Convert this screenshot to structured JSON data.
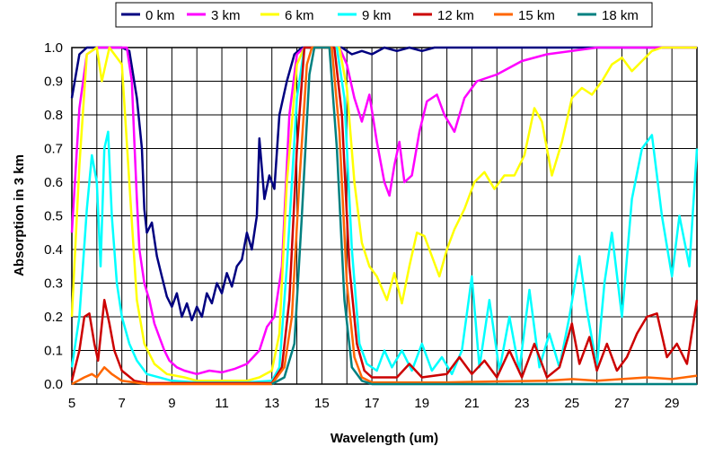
{
  "chart_data": {
    "type": "line",
    "xlabel": "Wavelength (um)",
    "ylabel": "Absorption in 3 km",
    "xlim": [
      5,
      30
    ],
    "ylim": [
      0,
      1.0
    ],
    "x_ticks": [
      "5",
      "7",
      "9",
      "11",
      "13",
      "15",
      "17",
      "19",
      "21",
      "23",
      "25",
      "27",
      "29"
    ],
    "y_ticks": [
      "0.0",
      "0.1",
      "0.2",
      "0.3",
      "0.4",
      "0.5",
      "0.6",
      "0.7",
      "0.8",
      "0.9",
      "1.0"
    ],
    "grid": true,
    "legend_position": "top",
    "series": [
      {
        "name": "0 km",
        "color": "#000080",
        "points": [
          [
            5,
            0.85
          ],
          [
            5.3,
            0.98
          ],
          [
            5.6,
            1
          ],
          [
            6,
            1
          ],
          [
            7,
            1
          ],
          [
            7.3,
            0.99
          ],
          [
            7.6,
            0.85
          ],
          [
            7.8,
            0.7
          ],
          [
            7.9,
            0.52
          ],
          [
            8.0,
            0.45
          ],
          [
            8.2,
            0.48
          ],
          [
            8.4,
            0.38
          ],
          [
            8.6,
            0.32
          ],
          [
            8.8,
            0.26
          ],
          [
            9.0,
            0.23
          ],
          [
            9.2,
            0.27
          ],
          [
            9.4,
            0.2
          ],
          [
            9.6,
            0.24
          ],
          [
            9.8,
            0.19
          ],
          [
            10.0,
            0.23
          ],
          [
            10.2,
            0.2
          ],
          [
            10.4,
            0.27
          ],
          [
            10.6,
            0.24
          ],
          [
            10.8,
            0.3
          ],
          [
            11.0,
            0.27
          ],
          [
            11.2,
            0.33
          ],
          [
            11.4,
            0.29
          ],
          [
            11.6,
            0.35
          ],
          [
            11.8,
            0.37
          ],
          [
            12.0,
            0.45
          ],
          [
            12.2,
            0.4
          ],
          [
            12.4,
            0.5
          ],
          [
            12.5,
            0.73
          ],
          [
            12.7,
            0.55
          ],
          [
            12.9,
            0.62
          ],
          [
            13.1,
            0.58
          ],
          [
            13.3,
            0.8
          ],
          [
            13.6,
            0.9
          ],
          [
            13.9,
            0.98
          ],
          [
            14.2,
            1
          ],
          [
            15.8,
            1
          ],
          [
            16.2,
            0.98
          ],
          [
            16.6,
            0.99
          ],
          [
            17.0,
            0.98
          ],
          [
            17.5,
            1
          ],
          [
            18.0,
            0.99
          ],
          [
            18.5,
            1
          ],
          [
            19.0,
            0.99
          ],
          [
            19.5,
            1
          ],
          [
            30,
            1
          ]
        ]
      },
      {
        "name": "3 km",
        "color": "#FF00FF",
        "points": [
          [
            5,
            0.45
          ],
          [
            5.3,
            0.82
          ],
          [
            5.6,
            0.98
          ],
          [
            6,
            1
          ],
          [
            7.2,
            1
          ],
          [
            7.4,
            0.9
          ],
          [
            7.5,
            0.72
          ],
          [
            7.6,
            0.55
          ],
          [
            7.7,
            0.4
          ],
          [
            7.9,
            0.3
          ],
          [
            8.1,
            0.25
          ],
          [
            8.3,
            0.18
          ],
          [
            8.5,
            0.14
          ],
          [
            8.7,
            0.1
          ],
          [
            8.9,
            0.07
          ],
          [
            9.2,
            0.05
          ],
          [
            9.5,
            0.04
          ],
          [
            10,
            0.03
          ],
          [
            10.5,
            0.04
          ],
          [
            11,
            0.035
          ],
          [
            11.5,
            0.045
          ],
          [
            12,
            0.06
          ],
          [
            12.5,
            0.1
          ],
          [
            12.8,
            0.17
          ],
          [
            13.1,
            0.2
          ],
          [
            13.4,
            0.35
          ],
          [
            13.7,
            0.8
          ],
          [
            14,
            0.98
          ],
          [
            14.3,
            1
          ],
          [
            15.7,
            1
          ],
          [
            16,
            0.95
          ],
          [
            16.3,
            0.85
          ],
          [
            16.6,
            0.78
          ],
          [
            16.9,
            0.86
          ],
          [
            17.2,
            0.72
          ],
          [
            17.5,
            0.6
          ],
          [
            17.7,
            0.56
          ],
          [
            17.9,
            0.65
          ],
          [
            18.1,
            0.72
          ],
          [
            18.3,
            0.6
          ],
          [
            18.6,
            0.62
          ],
          [
            18.9,
            0.75
          ],
          [
            19.2,
            0.84
          ],
          [
            19.6,
            0.86
          ],
          [
            19.9,
            0.8
          ],
          [
            20.3,
            0.75
          ],
          [
            20.7,
            0.85
          ],
          [
            21.2,
            0.9
          ],
          [
            22,
            0.92
          ],
          [
            23,
            0.96
          ],
          [
            24,
            0.98
          ],
          [
            25,
            0.99
          ],
          [
            26,
            1
          ],
          [
            30,
            1
          ]
        ]
      },
      {
        "name": "6 km",
        "color": "#FFFF00",
        "points": [
          [
            5,
            0.2
          ],
          [
            5.3,
            0.65
          ],
          [
            5.6,
            0.98
          ],
          [
            6,
            1
          ],
          [
            6.2,
            0.9
          ],
          [
            6.5,
            1
          ],
          [
            7,
            0.95
          ],
          [
            7.3,
            0.6
          ],
          [
            7.6,
            0.25
          ],
          [
            7.9,
            0.12
          ],
          [
            8.3,
            0.06
          ],
          [
            8.8,
            0.03
          ],
          [
            9.5,
            0.02
          ],
          [
            10,
            0.01
          ],
          [
            11,
            0.01
          ],
          [
            12,
            0.01
          ],
          [
            12.5,
            0.02
          ],
          [
            13,
            0.04
          ],
          [
            13.3,
            0.15
          ],
          [
            13.6,
            0.6
          ],
          [
            14,
            0.95
          ],
          [
            14.3,
            1
          ],
          [
            15.7,
            1
          ],
          [
            16,
            0.88
          ],
          [
            16.3,
            0.6
          ],
          [
            16.6,
            0.42
          ],
          [
            16.9,
            0.35
          ],
          [
            17.2,
            0.32
          ],
          [
            17.6,
            0.25
          ],
          [
            17.9,
            0.33
          ],
          [
            18.2,
            0.24
          ],
          [
            18.5,
            0.35
          ],
          [
            18.8,
            0.45
          ],
          [
            19.1,
            0.44
          ],
          [
            19.4,
            0.38
          ],
          [
            19.7,
            0.32
          ],
          [
            20,
            0.4
          ],
          [
            20.3,
            0.46
          ],
          [
            20.7,
            0.52
          ],
          [
            21.1,
            0.6
          ],
          [
            21.5,
            0.63
          ],
          [
            21.9,
            0.58
          ],
          [
            22.3,
            0.62
          ],
          [
            22.7,
            0.62
          ],
          [
            23.1,
            0.68
          ],
          [
            23.5,
            0.82
          ],
          [
            23.8,
            0.78
          ],
          [
            24.2,
            0.62
          ],
          [
            24.6,
            0.72
          ],
          [
            25,
            0.85
          ],
          [
            25.4,
            0.88
          ],
          [
            25.8,
            0.86
          ],
          [
            26.2,
            0.9
          ],
          [
            26.6,
            0.95
          ],
          [
            27,
            0.97
          ],
          [
            27.4,
            0.93
          ],
          [
            27.8,
            0.96
          ],
          [
            28.2,
            0.99
          ],
          [
            28.6,
            1
          ],
          [
            30,
            1
          ]
        ]
      },
      {
        "name": "9 km",
        "color": "#00FFFF",
        "points": [
          [
            5,
            0.05
          ],
          [
            5.3,
            0.2
          ],
          [
            5.6,
            0.52
          ],
          [
            5.8,
            0.68
          ],
          [
            6.0,
            0.6
          ],
          [
            6.15,
            0.35
          ],
          [
            6.3,
            0.7
          ],
          [
            6.45,
            0.75
          ],
          [
            6.6,
            0.5
          ],
          [
            6.8,
            0.3
          ],
          [
            7.0,
            0.2
          ],
          [
            7.3,
            0.12
          ],
          [
            7.6,
            0.07
          ],
          [
            8,
            0.03
          ],
          [
            9,
            0.01
          ],
          [
            10,
            0.005
          ],
          [
            12,
            0.005
          ],
          [
            13,
            0.01
          ],
          [
            13.3,
            0.05
          ],
          [
            13.6,
            0.35
          ],
          [
            14,
            0.85
          ],
          [
            14.3,
            1
          ],
          [
            15.6,
            1
          ],
          [
            15.9,
            0.85
          ],
          [
            16.2,
            0.4
          ],
          [
            16.5,
            0.12
          ],
          [
            16.8,
            0.06
          ],
          [
            17.2,
            0.04
          ],
          [
            17.5,
            0.1
          ],
          [
            17.8,
            0.05
          ],
          [
            18.2,
            0.1
          ],
          [
            18.6,
            0.04
          ],
          [
            19,
            0.12
          ],
          [
            19.4,
            0.04
          ],
          [
            19.8,
            0.08
          ],
          [
            20.2,
            0.03
          ],
          [
            20.6,
            0.1
          ],
          [
            21.0,
            0.32
          ],
          [
            21.3,
            0.05
          ],
          [
            21.7,
            0.25
          ],
          [
            22.1,
            0.04
          ],
          [
            22.5,
            0.2
          ],
          [
            22.9,
            0.04
          ],
          [
            23.3,
            0.28
          ],
          [
            23.7,
            0.05
          ],
          [
            24.1,
            0.15
          ],
          [
            24.5,
            0.05
          ],
          [
            24.9,
            0.2
          ],
          [
            25.3,
            0.38
          ],
          [
            25.6,
            0.22
          ],
          [
            26.0,
            0.05
          ],
          [
            26.3,
            0.3
          ],
          [
            26.6,
            0.45
          ],
          [
            27,
            0.2
          ],
          [
            27.4,
            0.55
          ],
          [
            27.8,
            0.7
          ],
          [
            28.2,
            0.74
          ],
          [
            28.6,
            0.5
          ],
          [
            29.0,
            0.32
          ],
          [
            29.3,
            0.5
          ],
          [
            29.7,
            0.35
          ],
          [
            30,
            0.7
          ]
        ]
      },
      {
        "name": "12 km",
        "color": "#CC0000",
        "points": [
          [
            5,
            0.01
          ],
          [
            5.3,
            0.1
          ],
          [
            5.5,
            0.2
          ],
          [
            5.7,
            0.21
          ],
          [
            5.9,
            0.12
          ],
          [
            6.05,
            0.07
          ],
          [
            6.3,
            0.25
          ],
          [
            6.5,
            0.18
          ],
          [
            6.7,
            0.1
          ],
          [
            7,
            0.04
          ],
          [
            7.5,
            0.01
          ],
          [
            8,
            0.003
          ],
          [
            13,
            0.003
          ],
          [
            13.4,
            0.05
          ],
          [
            13.7,
            0.25
          ],
          [
            14,
            0.7
          ],
          [
            14.3,
            1
          ],
          [
            15.5,
            1
          ],
          [
            15.8,
            0.8
          ],
          [
            16.1,
            0.35
          ],
          [
            16.4,
            0.12
          ],
          [
            16.7,
            0.04
          ],
          [
            17,
            0.02
          ],
          [
            18,
            0.02
          ],
          [
            18.5,
            0.06
          ],
          [
            19,
            0.02
          ],
          [
            20,
            0.03
          ],
          [
            20.5,
            0.08
          ],
          [
            21,
            0.03
          ],
          [
            21.5,
            0.07
          ],
          [
            22,
            0.02
          ],
          [
            22.5,
            0.1
          ],
          [
            23,
            0.02
          ],
          [
            23.5,
            0.12
          ],
          [
            24,
            0.02
          ],
          [
            24.5,
            0.05
          ],
          [
            25,
            0.18
          ],
          [
            25.3,
            0.06
          ],
          [
            25.7,
            0.14
          ],
          [
            26,
            0.04
          ],
          [
            26.4,
            0.12
          ],
          [
            26.8,
            0.04
          ],
          [
            27.2,
            0.08
          ],
          [
            27.6,
            0.15
          ],
          [
            28,
            0.2
          ],
          [
            28.4,
            0.21
          ],
          [
            28.8,
            0.08
          ],
          [
            29.2,
            0.12
          ],
          [
            29.6,
            0.06
          ],
          [
            30,
            0.25
          ]
        ]
      },
      {
        "name": "15 km",
        "color": "#FF6600",
        "points": [
          [
            5,
            0.0
          ],
          [
            5.5,
            0.02
          ],
          [
            5.8,
            0.03
          ],
          [
            6.0,
            0.02
          ],
          [
            6.3,
            0.05
          ],
          [
            6.6,
            0.03
          ],
          [
            7,
            0.01
          ],
          [
            8,
            0
          ],
          [
            13,
            0
          ],
          [
            13.5,
            0.05
          ],
          [
            13.8,
            0.2
          ],
          [
            14.1,
            0.6
          ],
          [
            14.4,
            0.95
          ],
          [
            14.6,
            1
          ],
          [
            15.4,
            1
          ],
          [
            15.7,
            0.75
          ],
          [
            16,
            0.3
          ],
          [
            16.3,
            0.08
          ],
          [
            16.6,
            0.02
          ],
          [
            17,
            0.005
          ],
          [
            20,
            0.005
          ],
          [
            22,
            0.008
          ],
          [
            24,
            0.01
          ],
          [
            25,
            0.015
          ],
          [
            26,
            0.01
          ],
          [
            27,
            0.015
          ],
          [
            28,
            0.02
          ],
          [
            29,
            0.015
          ],
          [
            30,
            0.025
          ]
        ]
      },
      {
        "name": "18 km",
        "color": "#008080",
        "points": [
          [
            13,
            0
          ],
          [
            13.5,
            0.02
          ],
          [
            13.9,
            0.12
          ],
          [
            14.2,
            0.5
          ],
          [
            14.5,
            0.92
          ],
          [
            14.7,
            1
          ],
          [
            15.3,
            1
          ],
          [
            15.6,
            0.7
          ],
          [
            15.9,
            0.25
          ],
          [
            16.2,
            0.05
          ],
          [
            16.6,
            0.01
          ],
          [
            17,
            0
          ],
          [
            30,
            0
          ]
        ]
      }
    ]
  }
}
